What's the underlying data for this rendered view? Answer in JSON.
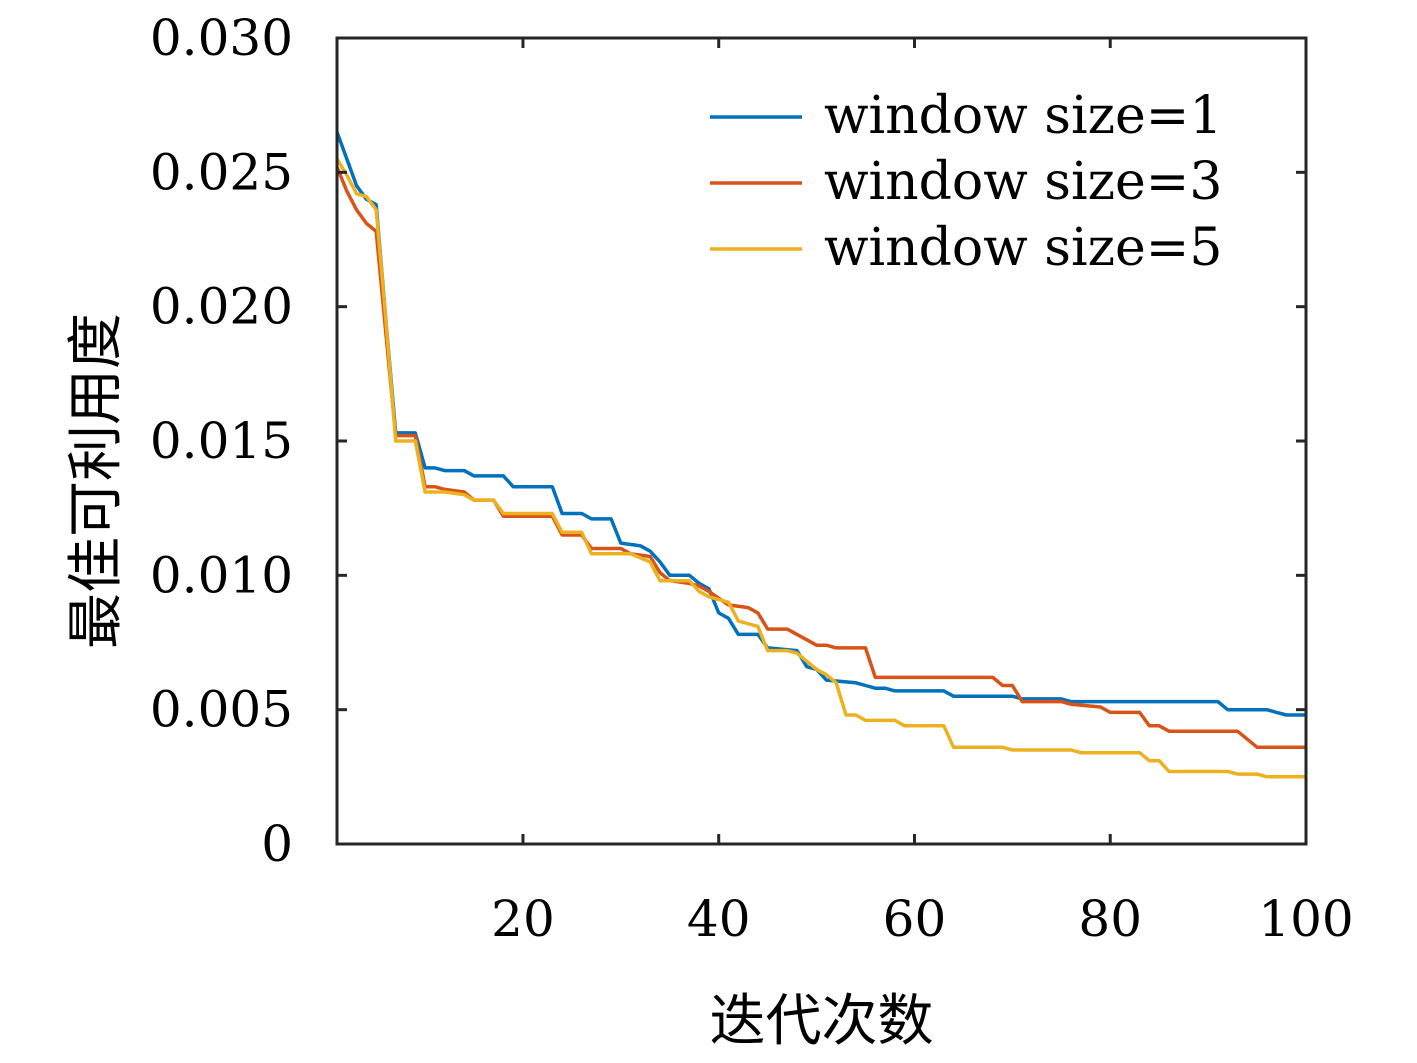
{
  "chart_data": {
    "type": "line",
    "xlabel": "迭代次数",
    "ylabel": "最佳可利用度",
    "xlim": [
      1,
      100
    ],
    "ylim": [
      0,
      0.03
    ],
    "xticks": [
      20,
      40,
      60,
      80,
      100
    ],
    "xtick_labels": [
      "20",
      "40",
      "60",
      "80",
      "100"
    ],
    "yticks": [
      0,
      0.005,
      0.01,
      0.015,
      0.02,
      0.025,
      0.03
    ],
    "ytick_labels": [
      "0",
      "0.005",
      "0.010",
      "0.015",
      "0.020",
      "0.025",
      "0.030"
    ],
    "grid": false,
    "legend_position": "top-right",
    "series": [
      {
        "name": "window size=1",
        "color": "#0072BD",
        "points": [
          [
            1,
            0.0265
          ],
          [
            2,
            0.0255
          ],
          [
            3,
            0.0245
          ],
          [
            4,
            0.024
          ],
          [
            5,
            0.0238
          ],
          [
            6,
            0.0195
          ],
          [
            7,
            0.0153
          ],
          [
            8,
            0.0153
          ],
          [
            9,
            0.0153
          ],
          [
            10,
            0.014
          ],
          [
            11,
            0.014
          ],
          [
            12,
            0.0139
          ],
          [
            14,
            0.0139
          ],
          [
            15,
            0.0137
          ],
          [
            18,
            0.0137
          ],
          [
            19,
            0.0133
          ],
          [
            23,
            0.0133
          ],
          [
            24,
            0.0123
          ],
          [
            26,
            0.0123
          ],
          [
            27,
            0.0121
          ],
          [
            29,
            0.0121
          ],
          [
            30,
            0.0112
          ],
          [
            32,
            0.0111
          ],
          [
            33,
            0.0109
          ],
          [
            34,
            0.0105
          ],
          [
            35,
            0.01
          ],
          [
            37,
            0.01
          ],
          [
            38,
            0.0097
          ],
          [
            39,
            0.0095
          ],
          [
            40,
            0.0086
          ],
          [
            41,
            0.0084
          ],
          [
            42,
            0.0078
          ],
          [
            44,
            0.0078
          ],
          [
            45,
            0.0073
          ],
          [
            48,
            0.0072
          ],
          [
            49,
            0.0066
          ],
          [
            50,
            0.0065
          ],
          [
            51,
            0.0061
          ],
          [
            54,
            0.006
          ],
          [
            55,
            0.0059
          ],
          [
            56,
            0.0058
          ],
          [
            57,
            0.0058
          ],
          [
            58,
            0.0057
          ],
          [
            63,
            0.0057
          ],
          [
            64,
            0.0055
          ],
          [
            70,
            0.0055
          ],
          [
            71,
            0.0054
          ],
          [
            75,
            0.0054
          ],
          [
            76,
            0.0053
          ],
          [
            91,
            0.0053
          ],
          [
            92,
            0.005
          ],
          [
            96,
            0.005
          ],
          [
            97,
            0.0049
          ],
          [
            98,
            0.0048
          ],
          [
            100,
            0.0048
          ]
        ]
      },
      {
        "name": "window size=3",
        "color": "#D95319",
        "points": [
          [
            1,
            0.0252
          ],
          [
            2,
            0.0243
          ],
          [
            3,
            0.0236
          ],
          [
            4,
            0.0231
          ],
          [
            5,
            0.0228
          ],
          [
            6,
            0.019
          ],
          [
            7,
            0.0152
          ],
          [
            8,
            0.0152
          ],
          [
            9,
            0.0152
          ],
          [
            10,
            0.0133
          ],
          [
            11,
            0.0133
          ],
          [
            12,
            0.0132
          ],
          [
            14,
            0.0131
          ],
          [
            15,
            0.0128
          ],
          [
            17,
            0.0128
          ],
          [
            18,
            0.0122
          ],
          [
            23,
            0.0122
          ],
          [
            24,
            0.0115
          ],
          [
            26,
            0.0115
          ],
          [
            27,
            0.011
          ],
          [
            30,
            0.011
          ],
          [
            31,
            0.0108
          ],
          [
            33,
            0.0107
          ],
          [
            34,
            0.0101
          ],
          [
            35,
            0.0098
          ],
          [
            37,
            0.0097
          ],
          [
            38,
            0.0096
          ],
          [
            39,
            0.0094
          ],
          [
            41,
            0.0089
          ],
          [
            43,
            0.0088
          ],
          [
            44,
            0.0086
          ],
          [
            45,
            0.008
          ],
          [
            47,
            0.008
          ],
          [
            48,
            0.0078
          ],
          [
            49,
            0.0076
          ],
          [
            50,
            0.0074
          ],
          [
            51,
            0.0074
          ],
          [
            52,
            0.0073
          ],
          [
            55,
            0.0073
          ],
          [
            56,
            0.0062
          ],
          [
            68,
            0.0062
          ],
          [
            69,
            0.0059
          ],
          [
            70,
            0.0059
          ],
          [
            71,
            0.0053
          ],
          [
            75,
            0.0053
          ],
          [
            76,
            0.0052
          ],
          [
            79,
            0.0051
          ],
          [
            80,
            0.0049
          ],
          [
            83,
            0.0049
          ],
          [
            84,
            0.0044
          ],
          [
            85,
            0.0044
          ],
          [
            86,
            0.0042
          ],
          [
            93,
            0.0042
          ],
          [
            94,
            0.0039
          ],
          [
            95,
            0.0036
          ],
          [
            100,
            0.0036
          ]
        ]
      },
      {
        "name": "window size=5",
        "color": "#EDB120",
        "points": [
          [
            1,
            0.0255
          ],
          [
            2,
            0.0249
          ],
          [
            3,
            0.0242
          ],
          [
            4,
            0.0241
          ],
          [
            5,
            0.0236
          ],
          [
            6,
            0.0195
          ],
          [
            7,
            0.015
          ],
          [
            8,
            0.015
          ],
          [
            9,
            0.015
          ],
          [
            10,
            0.0131
          ],
          [
            11,
            0.0131
          ],
          [
            12,
            0.0131
          ],
          [
            14,
            0.013
          ],
          [
            15,
            0.0128
          ],
          [
            17,
            0.0128
          ],
          [
            18,
            0.0123
          ],
          [
            23,
            0.0123
          ],
          [
            24,
            0.0116
          ],
          [
            26,
            0.0116
          ],
          [
            27,
            0.0108
          ],
          [
            30,
            0.0108
          ],
          [
            31,
            0.0108
          ],
          [
            33,
            0.0105
          ],
          [
            34,
            0.0098
          ],
          [
            37,
            0.0098
          ],
          [
            38,
            0.0094
          ],
          [
            39,
            0.0092
          ],
          [
            41,
            0.009
          ],
          [
            42,
            0.0083
          ],
          [
            44,
            0.0081
          ],
          [
            45,
            0.0072
          ],
          [
            47,
            0.0072
          ],
          [
            48,
            0.0071
          ],
          [
            49,
            0.0068
          ],
          [
            50,
            0.0065
          ],
          [
            51,
            0.0063
          ],
          [
            52,
            0.006
          ],
          [
            53,
            0.0048
          ],
          [
            54,
            0.0048
          ],
          [
            55,
            0.0046
          ],
          [
            58,
            0.0046
          ],
          [
            59,
            0.0044
          ],
          [
            62,
            0.0044
          ],
          [
            63,
            0.0044
          ],
          [
            64,
            0.0036
          ],
          [
            69,
            0.0036
          ],
          [
            70,
            0.0035
          ],
          [
            76,
            0.0035
          ],
          [
            77,
            0.0034
          ],
          [
            83,
            0.0034
          ],
          [
            84,
            0.0031
          ],
          [
            85,
            0.0031
          ],
          [
            86,
            0.0027
          ],
          [
            92,
            0.0027
          ],
          [
            93,
            0.0026
          ],
          [
            95,
            0.0026
          ],
          [
            96,
            0.0025
          ],
          [
            100,
            0.0025
          ]
        ]
      }
    ]
  }
}
